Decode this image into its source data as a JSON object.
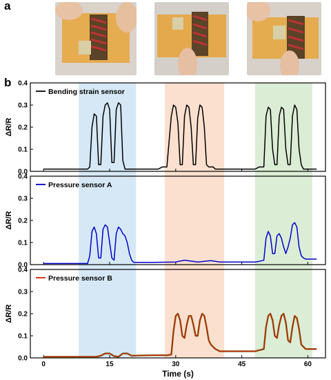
{
  "panels": {
    "a": "a",
    "b": "b"
  },
  "photos": [
    {
      "name": "photo-bending",
      "colors": {
        "bg": "#d9d3cc",
        "tape": "#e8a53a",
        "sensor": "#5a4326"
      }
    },
    {
      "name": "photo-press-a",
      "colors": {
        "bg": "#d4cfc9",
        "tape": "#e6a236",
        "sensor": "#5c4428"
      }
    },
    {
      "name": "photo-press-b",
      "colors": {
        "bg": "#d8d1ca",
        "tape": "#e8a43a",
        "sensor": "#5a4326"
      }
    }
  ],
  "chart_data": {
    "type": "line",
    "xlabel": "Time (s)",
    "xlim": [
      -3,
      64
    ],
    "xticks": [
      0,
      15,
      30,
      45,
      60
    ],
    "shaded_regions": [
      {
        "x0": 8,
        "x1": 21,
        "color": "#d6e8f5"
      },
      {
        "x0": 27.5,
        "x1": 41,
        "color": "#fbe0cf"
      },
      {
        "x0": 48,
        "x1": 61,
        "color": "#dcedd6"
      }
    ],
    "subplots": [
      {
        "ylabel": "ΔR/R",
        "ylim": [
          0,
          0.4
        ],
        "yticks": [
          "0.0",
          "0.1",
          "0.2",
          "0.3",
          "0.4"
        ],
        "series": [
          {
            "name": "Bending strain sensor",
            "color": "#000000",
            "x": [
              0,
              5,
              10,
              10.5,
              11,
              11.5,
              12,
              12.5,
              13,
              13.5,
              14,
              14.5,
              15,
              15.5,
              16,
              16.5,
              17,
              17.5,
              18,
              18.5,
              19,
              19.5,
              20,
              25,
              26,
              27,
              28,
              29,
              29.5,
              30,
              30.5,
              31,
              31.5,
              32,
              32.5,
              33,
              33.5,
              34,
              34.5,
              35,
              35.5,
              36,
              36.5,
              37,
              37.5,
              38,
              38.5,
              39,
              39.5,
              40,
              40.5,
              41,
              45,
              48,
              49,
              50,
              50.5,
              51,
              51.5,
              52,
              52.5,
              53,
              53.5,
              54,
              54.5,
              55,
              55.5,
              56,
              56.5,
              57,
              57.5,
              58,
              58.5,
              59,
              59.5,
              60,
              60.5,
              61,
              62
            ],
            "y": [
              0.01,
              0.01,
              0.01,
              0.02,
              0.2,
              0.26,
              0.25,
              0.03,
              0.03,
              0.25,
              0.3,
              0.31,
              0.28,
              0.04,
              0.04,
              0.28,
              0.31,
              0.3,
              0.05,
              0.01,
              0.01,
              0.01,
              0.01,
              0.01,
              0.01,
              0.02,
              0.02,
              0.25,
              0.3,
              0.29,
              0.22,
              0.03,
              0.03,
              0.25,
              0.3,
              0.29,
              0.2,
              0.03,
              0.03,
              0.24,
              0.3,
              0.29,
              0.2,
              0.03,
              0.02,
              0.02,
              0.02,
              0.01,
              0.01,
              0.01,
              0.01,
              0.01,
              0.01,
              0.01,
              0.02,
              0.02,
              0.25,
              0.29,
              0.28,
              0.1,
              0.03,
              0.03,
              0.25,
              0.29,
              0.28,
              0.1,
              0.03,
              0.03,
              0.25,
              0.3,
              0.28,
              0.1,
              0.03,
              0.01,
              0.01,
              0.01,
              0.01,
              0.01,
              0.01
            ]
          }
        ]
      },
      {
        "ylabel": "ΔR/R",
        "ylim": [
          0,
          0.4
        ],
        "yticks": [
          "0.0",
          "0.1",
          "0.2",
          "0.3",
          "0.4"
        ],
        "series": [
          {
            "name": "Pressure sensor A",
            "color": "#0000cc",
            "x": [
              0,
              5,
              10,
              10.5,
              11,
              11.5,
              12,
              12.5,
              13,
              13.5,
              14,
              14.5,
              15,
              15.5,
              16,
              16.5,
              17,
              17.5,
              18,
              18.5,
              19,
              19.5,
              20,
              20.5,
              21,
              25,
              30,
              32,
              35,
              38,
              40,
              45,
              48,
              49,
              50,
              50.5,
              51,
              51.5,
              52,
              52.5,
              53,
              53.5,
              54,
              54.5,
              55,
              55.5,
              56,
              56.5,
              57,
              57.5,
              58,
              58.5,
              59,
              59.5,
              60,
              61,
              62
            ],
            "y": [
              0.005,
              0.005,
              0.005,
              0.04,
              0.15,
              0.17,
              0.14,
              0.03,
              0.03,
              0.16,
              0.18,
              0.17,
              0.1,
              0.03,
              0.02,
              0.14,
              0.17,
              0.16,
              0.14,
              0.13,
              0.1,
              0.05,
              0.02,
              0.01,
              0.01,
              0.01,
              0.012,
              0.02,
              0.012,
              0.018,
              0.012,
              0.012,
              0.012,
              0.015,
              0.02,
              0.12,
              0.15,
              0.13,
              0.05,
              0.05,
              0.13,
              0.14,
              0.12,
              0.08,
              0.05,
              0.08,
              0.12,
              0.18,
              0.19,
              0.17,
              0.08,
              0.04,
              0.03,
              0.025,
              0.025,
              0.025,
              0.025
            ]
          }
        ]
      },
      {
        "ylabel": "ΔR/R",
        "ylim": [
          0,
          0.4
        ],
        "yticks": [
          "0.0",
          "0.1",
          "0.2",
          "0.3",
          "0.4"
        ],
        "series": [
          {
            "name": "Pressure sensor B",
            "color": "#cc2200",
            "x": [
              0,
              5,
              10,
              12,
              13,
              14,
              15,
              16,
              17,
              18,
              19,
              20,
              25,
              28,
              29,
              29.5,
              30,
              30.5,
              31,
              31.5,
              32,
              32.5,
              33,
              33.5,
              34,
              34.5,
              35,
              35.5,
              36,
              36.5,
              37,
              37.5,
              38,
              38.5,
              39,
              39.5,
              40,
              41,
              45,
              47,
              48,
              49,
              50,
              50.5,
              51,
              51.5,
              52,
              52.5,
              53,
              53.5,
              54,
              54.5,
              55,
              55.5,
              56,
              56.5,
              57,
              57.5,
              58,
              58.5,
              59,
              59.5,
              60,
              61,
              62
            ],
            "y": [
              0.005,
              0.005,
              0.005,
              0.005,
              0.01,
              0.02,
              0.02,
              0.008,
              0.005,
              0.02,
              0.02,
              0.01,
              0.012,
              0.012,
              0.015,
              0.12,
              0.19,
              0.2,
              0.17,
              0.1,
              0.09,
              0.15,
              0.19,
              0.19,
              0.15,
              0.1,
              0.1,
              0.17,
              0.2,
              0.19,
              0.14,
              0.08,
              0.06,
              0.05,
              0.04,
              0.035,
              0.03,
              0.03,
              0.03,
              0.03,
              0.03,
              0.035,
              0.04,
              0.14,
              0.19,
              0.2,
              0.17,
              0.1,
              0.09,
              0.15,
              0.19,
              0.2,
              0.16,
              0.08,
              0.07,
              0.14,
              0.19,
              0.18,
              0.13,
              0.06,
              0.05,
              0.04,
              0.04,
              0.04,
              0.04
            ]
          }
        ]
      }
    ]
  }
}
